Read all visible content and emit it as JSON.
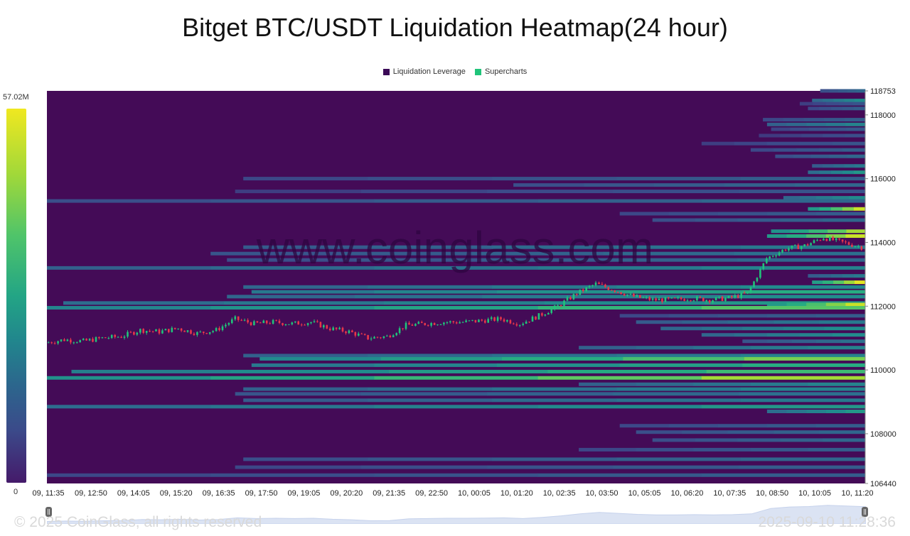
{
  "title": "Bitget BTC/USDT Liquidation Heatmap(24 hour)",
  "legend": [
    {
      "label": "Liquidation Leverage",
      "color": "#3b0a57"
    },
    {
      "label": "Supercharts",
      "color": "#20c47a"
    }
  ],
  "colorbar": {
    "max_label": "57.02M",
    "min_label": "0"
  },
  "footer": {
    "copyright": "© 2025 CoinGlass, all rights reserved",
    "timestamp": "2025-09-10 11:28:36"
  },
  "watermark": "www.coinglass.com",
  "colors": {
    "background": "#440b57",
    "candle_up": "#20c47a",
    "candle_down": "#e8364a"
  },
  "chart_data": {
    "type": "heatmap",
    "title": "Bitget BTC/USDT Liquidation Heatmap(24 hour)",
    "xlabel": "",
    "ylabel": "",
    "ylim": [
      106440,
      118753
    ],
    "y_ticks": [
      "118753",
      "118000",
      "116000",
      "114000",
      "112000",
      "110000",
      "108000",
      "106440"
    ],
    "x_ticks": [
      "09, 11:35",
      "09, 12:50",
      "09, 14:05",
      "09, 15:20",
      "09, 16:35",
      "09, 17:50",
      "09, 19:05",
      "09, 20:20",
      "09, 21:35",
      "09, 22:50",
      "10, 00:05",
      "10, 01:20",
      "10, 02:35",
      "10, 03:50",
      "10, 05:05",
      "10, 06:20",
      "10, 07:35",
      "10, 08:50",
      "10, 10:05",
      "10, 11:20"
    ],
    "price_path": [
      [
        0,
        110850
      ],
      [
        1,
        110950
      ],
      [
        2,
        110900
      ],
      [
        3,
        111000
      ],
      [
        4,
        111050
      ],
      [
        5,
        111250
      ],
      [
        6,
        111200
      ],
      [
        7,
        111300
      ],
      [
        8,
        111150
      ],
      [
        9,
        111250
      ],
      [
        10,
        111600
      ],
      [
        11,
        111450
      ],
      [
        12,
        111500
      ],
      [
        13,
        111450
      ],
      [
        14,
        111500
      ],
      [
        15,
        111300
      ],
      [
        16,
        111200
      ],
      [
        17,
        111000
      ],
      [
        18,
        111050
      ],
      [
        19,
        111400
      ],
      [
        20,
        111450
      ],
      [
        21,
        111500
      ],
      [
        22,
        111500
      ],
      [
        23,
        111550
      ],
      [
        24,
        111600
      ],
      [
        25,
        111450
      ],
      [
        26,
        111700
      ],
      [
        27,
        112000
      ],
      [
        28,
        112400
      ],
      [
        29,
        112700
      ],
      [
        30,
        112500
      ],
      [
        31,
        112300
      ],
      [
        32,
        112200
      ],
      [
        33,
        112200
      ],
      [
        34,
        112250
      ],
      [
        35,
        112200
      ],
      [
        36,
        112250
      ],
      [
        37,
        112400
      ],
      [
        38,
        113500
      ],
      [
        39,
        113800
      ],
      [
        40,
        113900
      ],
      [
        41,
        114150
      ],
      [
        42,
        114000
      ],
      [
        43,
        113850
      ]
    ],
    "price_max": 114200,
    "price_min": 110750,
    "bands": [
      {
        "price": 118753,
        "start": 0.945,
        "level": 0.35
      },
      {
        "price": 118450,
        "start": 0.935,
        "level": 0.55
      },
      {
        "price": 118350,
        "start": 0.92,
        "level": 0.25
      },
      {
        "price": 118200,
        "start": 0.93,
        "level": 0.3
      },
      {
        "price": 117850,
        "start": 0.875,
        "level": 0.3
      },
      {
        "price": 117700,
        "start": 0.88,
        "level": 0.5
      },
      {
        "price": 117550,
        "start": 0.885,
        "level": 0.28
      },
      {
        "price": 117350,
        "start": 0.87,
        "level": 0.22
      },
      {
        "price": 117100,
        "start": 0.8,
        "level": 0.25
      },
      {
        "price": 116900,
        "start": 0.86,
        "level": 0.3
      },
      {
        "price": 116700,
        "start": 0.89,
        "level": 0.35
      },
      {
        "price": 116400,
        "start": 0.935,
        "level": 0.45
      },
      {
        "price": 116200,
        "start": 0.93,
        "level": 0.6
      },
      {
        "price": 116000,
        "start": 0.24,
        "level": 0.3
      },
      {
        "price": 115800,
        "start": 0.57,
        "level": 0.35
      },
      {
        "price": 115600,
        "start": 0.23,
        "level": 0.25
      },
      {
        "price": 115400,
        "start": 0.9,
        "level": 0.55
      },
      {
        "price": 115300,
        "start": 0.0,
        "level": 0.35
      },
      {
        "price": 115050,
        "start": 0.93,
        "level": 0.95
      },
      {
        "price": 114900,
        "start": 0.7,
        "level": 0.3
      },
      {
        "price": 114700,
        "start": 0.74,
        "level": 0.35
      },
      {
        "price": 114350,
        "start": 0.885,
        "level": 0.9
      },
      {
        "price": 114200,
        "start": 0.88,
        "level": 0.95
      },
      {
        "price": 113850,
        "start": 0.24,
        "level": 0.45
      },
      {
        "price": 113650,
        "start": 0.2,
        "level": 0.4
      },
      {
        "price": 113450,
        "start": 0.22,
        "level": 0.35
      },
      {
        "price": 113200,
        "start": 0.0,
        "level": 0.5
      },
      {
        "price": 112950,
        "start": 0.93,
        "level": 0.45
      },
      {
        "price": 112750,
        "start": 0.935,
        "level": 0.98
      },
      {
        "price": 112600,
        "start": 0.24,
        "level": 0.55
      },
      {
        "price": 112450,
        "start": 0.25,
        "level": 0.7
      },
      {
        "price": 112300,
        "start": 0.22,
        "level": 0.55
      },
      {
        "price": 112100,
        "start": 0.02,
        "level": 0.6
      },
      {
        "price": 112050,
        "start": 0.88,
        "level": 0.95
      },
      {
        "price": 111950,
        "start": 0.0,
        "level": 0.8
      },
      {
        "price": 111700,
        "start": 0.7,
        "level": 0.3
      },
      {
        "price": 111500,
        "start": 0.72,
        "level": 0.45
      },
      {
        "price": 111300,
        "start": 0.75,
        "level": 0.55
      },
      {
        "price": 111100,
        "start": 0.8,
        "level": 0.55
      },
      {
        "price": 110900,
        "start": 0.85,
        "level": 0.4
      },
      {
        "price": 110700,
        "start": 0.65,
        "level": 0.5
      },
      {
        "price": 110450,
        "start": 0.24,
        "level": 0.5
      },
      {
        "price": 110350,
        "start": 0.26,
        "level": 0.85
      },
      {
        "price": 110150,
        "start": 0.25,
        "level": 0.7
      },
      {
        "price": 109950,
        "start": 0.03,
        "level": 0.75
      },
      {
        "price": 109750,
        "start": 0.0,
        "level": 0.9
      },
      {
        "price": 109550,
        "start": 0.65,
        "level": 0.5
      },
      {
        "price": 109400,
        "start": 0.24,
        "level": 0.5
      },
      {
        "price": 109250,
        "start": 0.23,
        "level": 0.4
      },
      {
        "price": 109050,
        "start": 0.24,
        "level": 0.45
      },
      {
        "price": 108850,
        "start": 0.0,
        "level": 0.6
      },
      {
        "price": 108700,
        "start": 0.88,
        "level": 0.6
      },
      {
        "price": 108250,
        "start": 0.7,
        "level": 0.3
      },
      {
        "price": 108050,
        "start": 0.72,
        "level": 0.35
      },
      {
        "price": 107800,
        "start": 0.74,
        "level": 0.35
      },
      {
        "price": 107500,
        "start": 0.65,
        "level": 0.3
      },
      {
        "price": 107200,
        "start": 0.24,
        "level": 0.35
      },
      {
        "price": 106950,
        "start": 0.23,
        "level": 0.3
      },
      {
        "price": 106700,
        "start": 0.0,
        "level": 0.3
      }
    ]
  }
}
